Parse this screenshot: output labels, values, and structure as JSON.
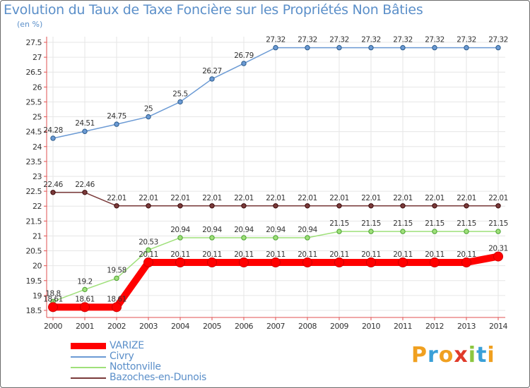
{
  "brand": {
    "logo_text": "Proxiti"
  },
  "chart_data": {
    "type": "line",
    "title": "Evolution du Taux de Taxe Foncière sur les Propriétés Non Bâties",
    "ylabel": "(en %)",
    "xlabel": "",
    "categories": [
      "2000",
      "2001",
      "2002",
      "2003",
      "2004",
      "2005",
      "2006",
      "2007",
      "2008",
      "2009",
      "2010",
      "2011",
      "2012",
      "2013",
      "2014"
    ],
    "yticks": [
      "18.5",
      "19",
      "19.5",
      "20",
      "20.5",
      "21",
      "21.5",
      "22",
      "22.5",
      "23",
      "23.5",
      "24",
      "24.5",
      "25",
      "25.5",
      "26",
      "26.5",
      "27",
      "27.5"
    ],
    "ylim": [
      18.5,
      27.5
    ],
    "series": [
      {
        "name": "VARIZE",
        "color": "#ff0000",
        "values": [
          18.61,
          18.61,
          18.61,
          20.11,
          20.11,
          20.11,
          20.11,
          20.11,
          20.11,
          20.11,
          20.11,
          20.11,
          20.11,
          20.11,
          20.31
        ],
        "labels": [
          "18.61",
          "18.61",
          "18.61",
          "20.11",
          "20.11",
          "20.11",
          "20.11",
          "20.11",
          "20.11",
          "20.11",
          "20.11",
          "20.11",
          "20.11",
          "20.11",
          "20.31"
        ]
      },
      {
        "name": "Civry",
        "color": "#6b9ad4",
        "values": [
          24.28,
          24.51,
          24.75,
          25,
          25.5,
          26.27,
          26.79,
          27.32,
          27.32,
          27.32,
          27.32,
          27.32,
          27.32,
          27.32,
          27.32
        ],
        "labels": [
          "24.28",
          "24.51",
          "24.75",
          "25",
          "25.5",
          "26.27",
          "26.79",
          "27.32",
          "27.32",
          "27.32",
          "27.32",
          "27.32",
          "27.32",
          "27.32",
          "27.32"
        ]
      },
      {
        "name": "Nottonville",
        "color": "#9fe07a",
        "values": [
          18.8,
          19.2,
          19.58,
          20.53,
          20.94,
          20.94,
          20.94,
          20.94,
          20.94,
          21.15,
          21.15,
          21.15,
          21.15,
          21.15,
          21.15
        ],
        "labels": [
          "18.8",
          "19.2",
          "19.58",
          "20.53",
          "20.94",
          "20.94",
          "20.94",
          "20.94",
          "20.94",
          "21.15",
          "21.15",
          "21.15",
          "21.15",
          "21.15",
          "21.15"
        ]
      },
      {
        "name": "Bazoches-en-Dunois",
        "color": "#7a3a3a",
        "values": [
          22.46,
          22.46,
          22.01,
          22.01,
          22.01,
          22.01,
          22.01,
          22.01,
          22.01,
          22.01,
          22.01,
          22.01,
          22.01,
          22.01,
          22.01
        ],
        "labels": [
          "22.46",
          "22.46",
          "22.01",
          "22.01",
          "22.01",
          "22.01",
          "22.01",
          "22.01",
          "22.01",
          "22.01",
          "22.01",
          "22.01",
          "22.01",
          "22.01",
          "22.01"
        ]
      }
    ]
  }
}
